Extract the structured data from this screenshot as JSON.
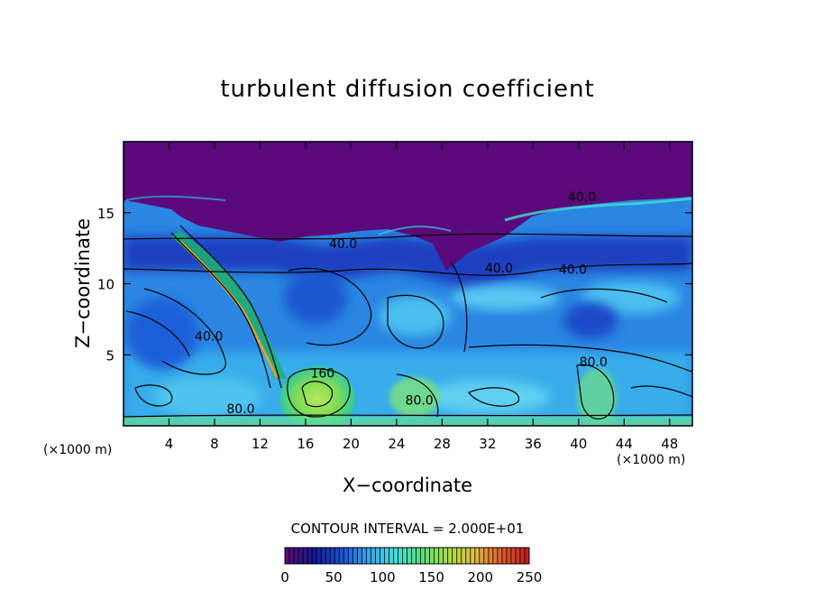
{
  "chart_data": {
    "type": "heatmap",
    "title": "turbulent diffusion coefficient",
    "xlabel": "X−coordinate",
    "ylabel": "Z−coordinate",
    "x_unit": "(×1000 m)",
    "x_unit_right": "(×1000 m)",
    "x_range": [
      0,
      50
    ],
    "z_range": [
      0,
      20
    ],
    "x_ticks": [
      4,
      8,
      12,
      16,
      20,
      24,
      28,
      32,
      36,
      40,
      44,
      48
    ],
    "x_tick_labels": [
      "4",
      "8",
      "12",
      "16",
      "20",
      "24",
      "28",
      "32",
      "36",
      "40",
      "44",
      "48"
    ],
    "z_ticks": [
      5,
      10,
      15
    ],
    "z_tick_labels": [
      "5",
      "10",
      "15"
    ],
    "contour_interval_text": "CONTOUR INTERVAL = 2.000E+01",
    "contour_interval": 20,
    "colorbar": {
      "min": 0,
      "max": 250,
      "ticks": [
        0,
        50,
        100,
        150,
        200,
        250
      ],
      "tick_labels": [
        "0",
        "50",
        "100",
        "150",
        "200",
        "250"
      ],
      "colors": [
        "#5a0a78",
        "#101890",
        "#1a4fd6",
        "#3aa0ee",
        "#40e0e0",
        "#50e080",
        "#a8e040",
        "#e0c040",
        "#e06030",
        "#c02020"
      ]
    },
    "contour_labels": [
      {
        "text": "40.0",
        "x": 40.3,
        "z": 15.8
      },
      {
        "text": "40.0",
        "x": 19.3,
        "z": 12.5
      },
      {
        "text": "40.0",
        "x": 33.0,
        "z": 10.8
      },
      {
        "text": "40.0",
        "x": 39.5,
        "z": 10.7
      },
      {
        "text": "40.0",
        "x": 7.5,
        "z": 6.0
      },
      {
        "text": "80.0",
        "x": 41.3,
        "z": 4.2
      },
      {
        "text": "80.0",
        "x": 10.3,
        "z": 0.9
      },
      {
        "text": "80.0",
        "x": 26.0,
        "z": 1.5
      },
      {
        "text": "160",
        "x": 17.5,
        "z": 3.4
      }
    ]
  }
}
